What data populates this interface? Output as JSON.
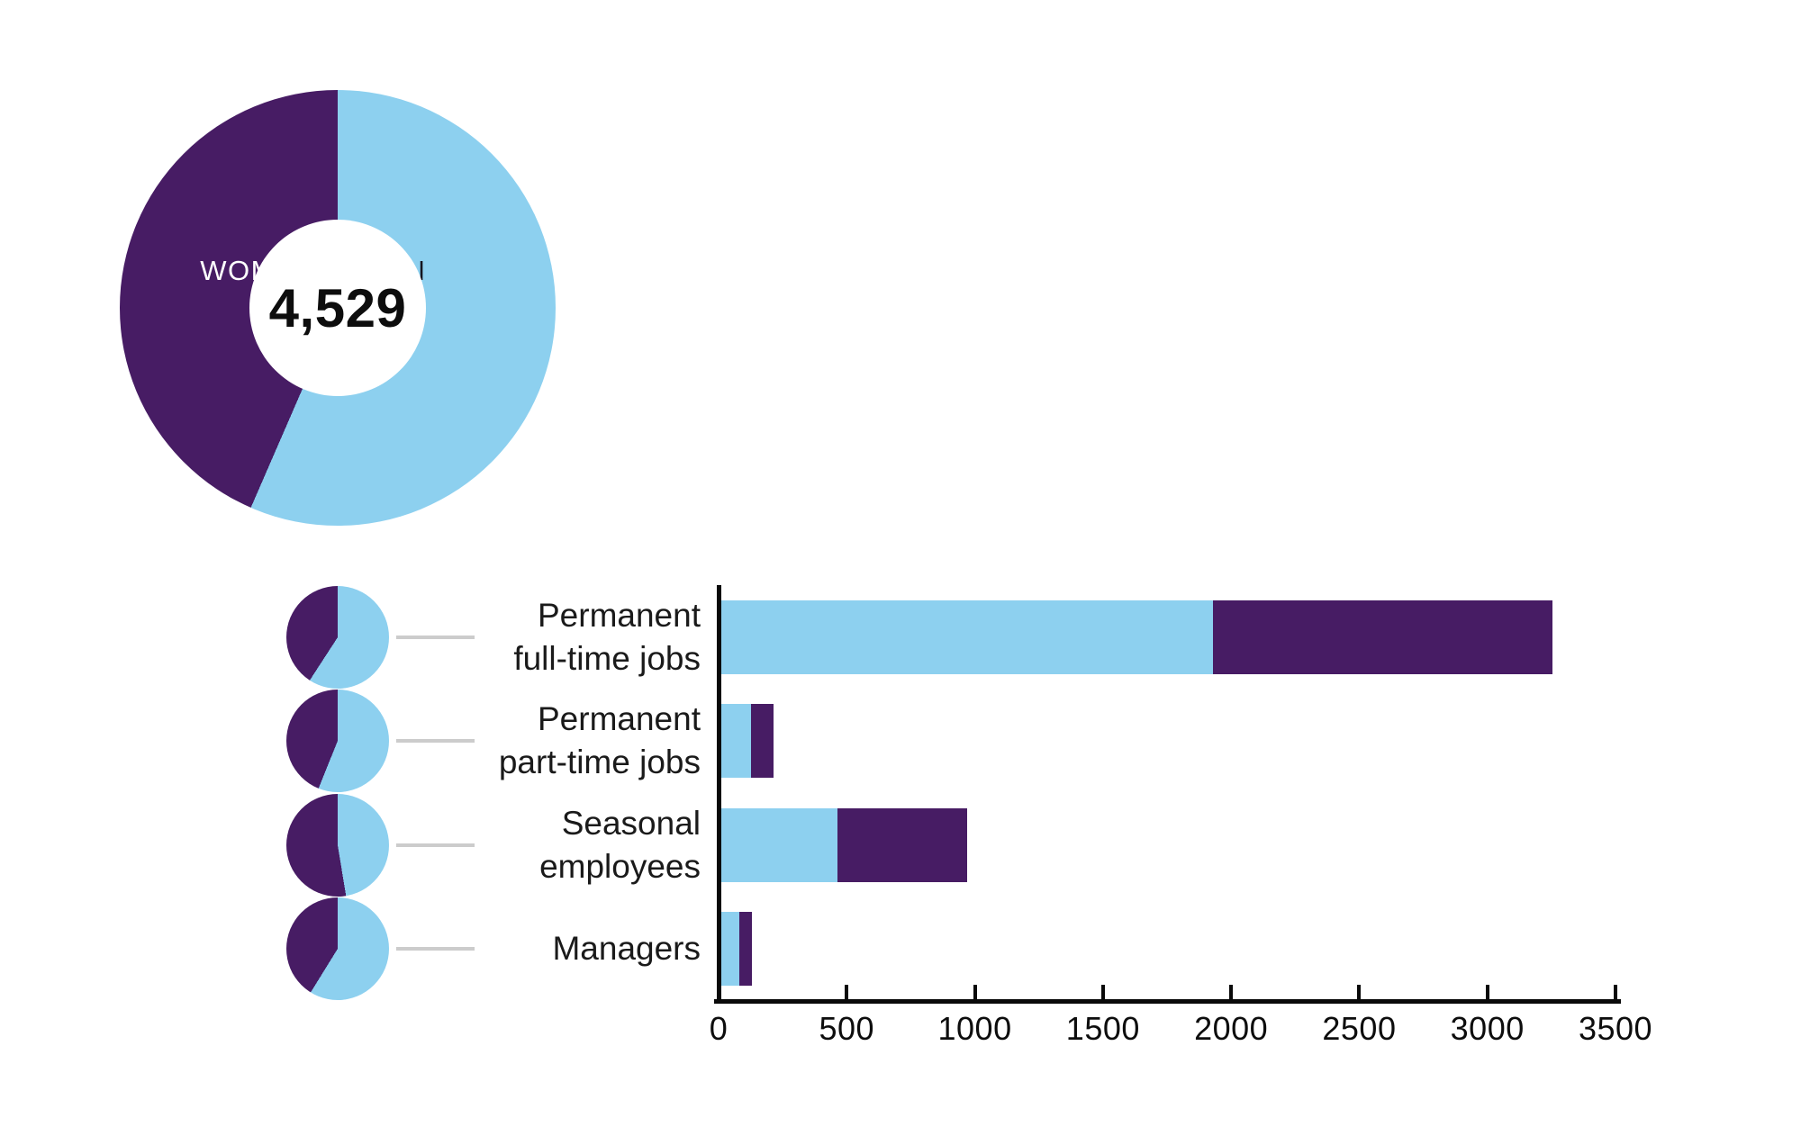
{
  "colors": {
    "men_blue": "#8dd0ef",
    "women_purple": "#471c64",
    "text_dark": "#1a1a1a",
    "connector_gray": "#cccccc",
    "axis_black": "#0a0a0a",
    "women_label_white": "#ffffff"
  },
  "donut": {
    "women_label": "WOMEN",
    "men_label": "MEN",
    "total": "4,529"
  },
  "categories": [
    {
      "label_lines": [
        "Permanent",
        "full-time jobs"
      ],
      "men": 1920,
      "women": 1325
    },
    {
      "label_lines": [
        "Permanent",
        "part-time jobs"
      ],
      "men": 115,
      "women": 90
    },
    {
      "label_lines": [
        "Seasonal",
        "employees"
      ],
      "men": 455,
      "women": 505
    },
    {
      "label_lines": [
        "Managers"
      ],
      "men": 70,
      "women": 49
    }
  ],
  "axis": {
    "max": 3500,
    "ticks": [
      0,
      500,
      1000,
      1500,
      2000,
      2500,
      3000,
      3500
    ]
  },
  "chart_data": [
    {
      "type": "pie",
      "subtype": "donut",
      "labels": [
        "WOMEN",
        "MEN"
      ],
      "values": [
        1969,
        2560
      ],
      "shares_pct": [
        43.5,
        56.5
      ],
      "center_total_label": "4,529",
      "colors": [
        "#471c64",
        "#8dd0ef"
      ],
      "note": "slice values estimated from arc angles; total 4,529 shown in center",
      "legend_position": "inside-top"
    },
    {
      "type": "bar",
      "orientation": "horizontal",
      "stacked": true,
      "categories": [
        "Permanent full-time jobs",
        "Permanent part-time jobs",
        "Seasonal employees",
        "Managers"
      ],
      "series": [
        {
          "name": "Men",
          "color": "#8dd0ef",
          "values": [
            1920,
            115,
            455,
            70
          ]
        },
        {
          "name": "Women",
          "color": "#471c64",
          "values": [
            1325,
            90,
            505,
            49
          ]
        }
      ],
      "totals": [
        3245,
        205,
        960,
        119
      ],
      "xlabel": "",
      "ylabel": "",
      "xlim": [
        0,
        3500
      ],
      "xticks": [
        0,
        500,
        1000,
        1500,
        2000,
        2500,
        3000,
        3500
      ],
      "grid": false,
      "note": "values estimated from bar lengths; each category also shown as a small women/men pie beside its label",
      "small_multiple_pies_women_pct": [
        40.8,
        43.9,
        52.6,
        41.2
      ]
    }
  ]
}
